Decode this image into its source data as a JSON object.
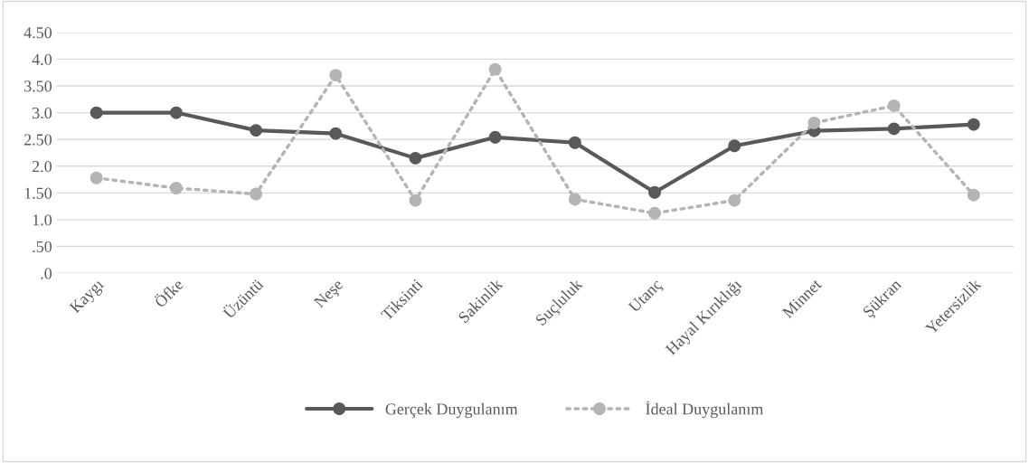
{
  "chart_data": {
    "type": "line",
    "categories": [
      "Kaygı",
      "Öfke",
      "Üzüntü",
      "Neşe",
      "Tiksinti",
      "Sakinlik",
      "Suçluluk",
      "Utanç",
      "Hayal Kırıklığı",
      "Minnet",
      "Şükran",
      "Yetersizlik"
    ],
    "series": [
      {
        "name": "Gerçek Duygulanım",
        "color": "#595959",
        "line_style": "solid",
        "values": [
          3.0,
          3.0,
          2.67,
          2.61,
          2.15,
          2.54,
          2.44,
          1.51,
          2.38,
          2.66,
          2.7,
          2.78
        ]
      },
      {
        "name": "İdeal Duygulanım",
        "color": "#b4b4b4",
        "line_style": "dotted",
        "values": [
          1.78,
          1.59,
          1.48,
          3.7,
          1.36,
          3.81,
          1.38,
          1.12,
          1.36,
          2.81,
          3.13,
          1.46
        ]
      }
    ],
    "ylim": [
      0,
      4.5
    ],
    "yticks": [
      {
        "value": 0,
        "label": ".0"
      },
      {
        "value": 0.5,
        "label": ".50"
      },
      {
        "value": 1,
        "label": "1.0"
      },
      {
        "value": 1.5,
        "label": "1.50"
      },
      {
        "value": 2,
        "label": "2.0"
      },
      {
        "value": 2.5,
        "label": "2.50"
      },
      {
        "value": 3,
        "label": "3.0"
      },
      {
        "value": 3.5,
        "label": "3.50"
      },
      {
        "value": 4,
        "label": "4.0"
      },
      {
        "value": 4.5,
        "label": "4.50"
      }
    ],
    "grid": "y",
    "legend": "bottom",
    "marker": "circle"
  }
}
